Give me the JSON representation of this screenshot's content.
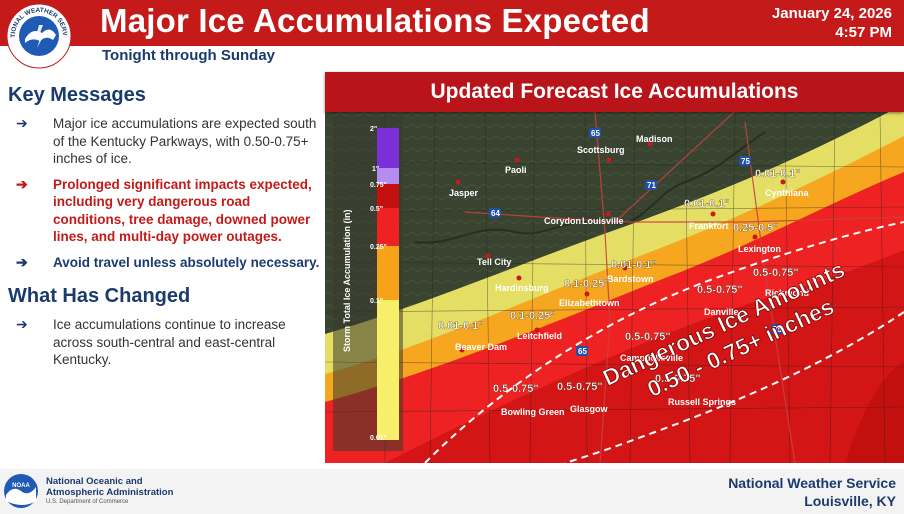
{
  "header": {
    "title": "Major Ice Accumulations Expected",
    "date": "January 24, 2026",
    "time": "4:57 PM",
    "subtitle": "Tonight through Sunday",
    "logo_text": "NATIONAL WEATHER SERVICE",
    "logo_icon": "nws-logo-icon"
  },
  "left": {
    "key_messages_heading": "Key Messages",
    "key_messages": [
      "Major ice accumulations are expected south of the Kentucky Parkways, with 0.50-0.75+ inches of ice.",
      "Prolonged significant impacts expected, including very dangerous road conditions, tree damage, downed power lines, and multi-day power outages.",
      "Avoid travel unless absolutely necessary."
    ],
    "changed_heading": "What Has Changed",
    "changed_messages": [
      "Ice accumulations continue to increase across south-central and east-central Kentucky."
    ],
    "arrow_symbol": "➔"
  },
  "map": {
    "title": "Updated Forecast Ice Accumulations",
    "legend": {
      "axis_label": "Storm Total Ice Accumulation (in)",
      "ticks": [
        "2\"",
        "1\"",
        "0.75\"",
        "0.5\"",
        "0.25\"",
        "0.1\"",
        "0.01\""
      ],
      "colors": {
        "2": "#7b2fd6",
        "1": "#b58cf0",
        "0.75": "#c40f0f",
        "0.5": "#ee2222",
        "0.25": "#f7a21b",
        "0.1": "#f7ef6a"
      }
    },
    "cities": [
      "Scottsburg",
      "Madison",
      "Paoli",
      "Jasper",
      "Corydon",
      "Louisville",
      "Cynthiana",
      "Frankfort",
      "Lexington",
      "Tell City",
      "Hardinsburg",
      "Bardstown",
      "Elizabethtown",
      "Danville",
      "Richmond",
      "Leitchfield",
      "Beaver Dam",
      "Campbellsville",
      "Bowling Green",
      "Glasgow",
      "Russell Springs"
    ],
    "amounts": {
      "a1": "0.01-0.1\"",
      "a2": "0.01-0.1\"",
      "a3": "0.01-0.1\"",
      "a4": "0.01-0.1\"",
      "a5": "0.1-0.25\"",
      "a6": "0.1-0.25\"",
      "a7": "0.25-0.5\"",
      "a8": "0.5-0.75\"",
      "a9": "0.5-0.75\"",
      "a10": "0.5-0.75\"",
      "a11": "0.5-0.75\"",
      "a12": "0.5-0.75\"",
      "a13": "0.5-0.75\""
    },
    "interstates": [
      "65",
      "71",
      "75",
      "64",
      "65",
      "75"
    ],
    "callout_line1": "Dangerous Ice Amounts",
    "callout_line2": "0.50 - 0.75+ inches"
  },
  "footer": {
    "noaa_line1": "National Oceanic and",
    "noaa_line2": "Atmospheric Administration",
    "noaa_sub": "U.S. Department of Commerce",
    "noaa_logo_text": "NOAA",
    "nws_line1": "National Weather Service",
    "nws_line2": "Louisville, KY"
  }
}
